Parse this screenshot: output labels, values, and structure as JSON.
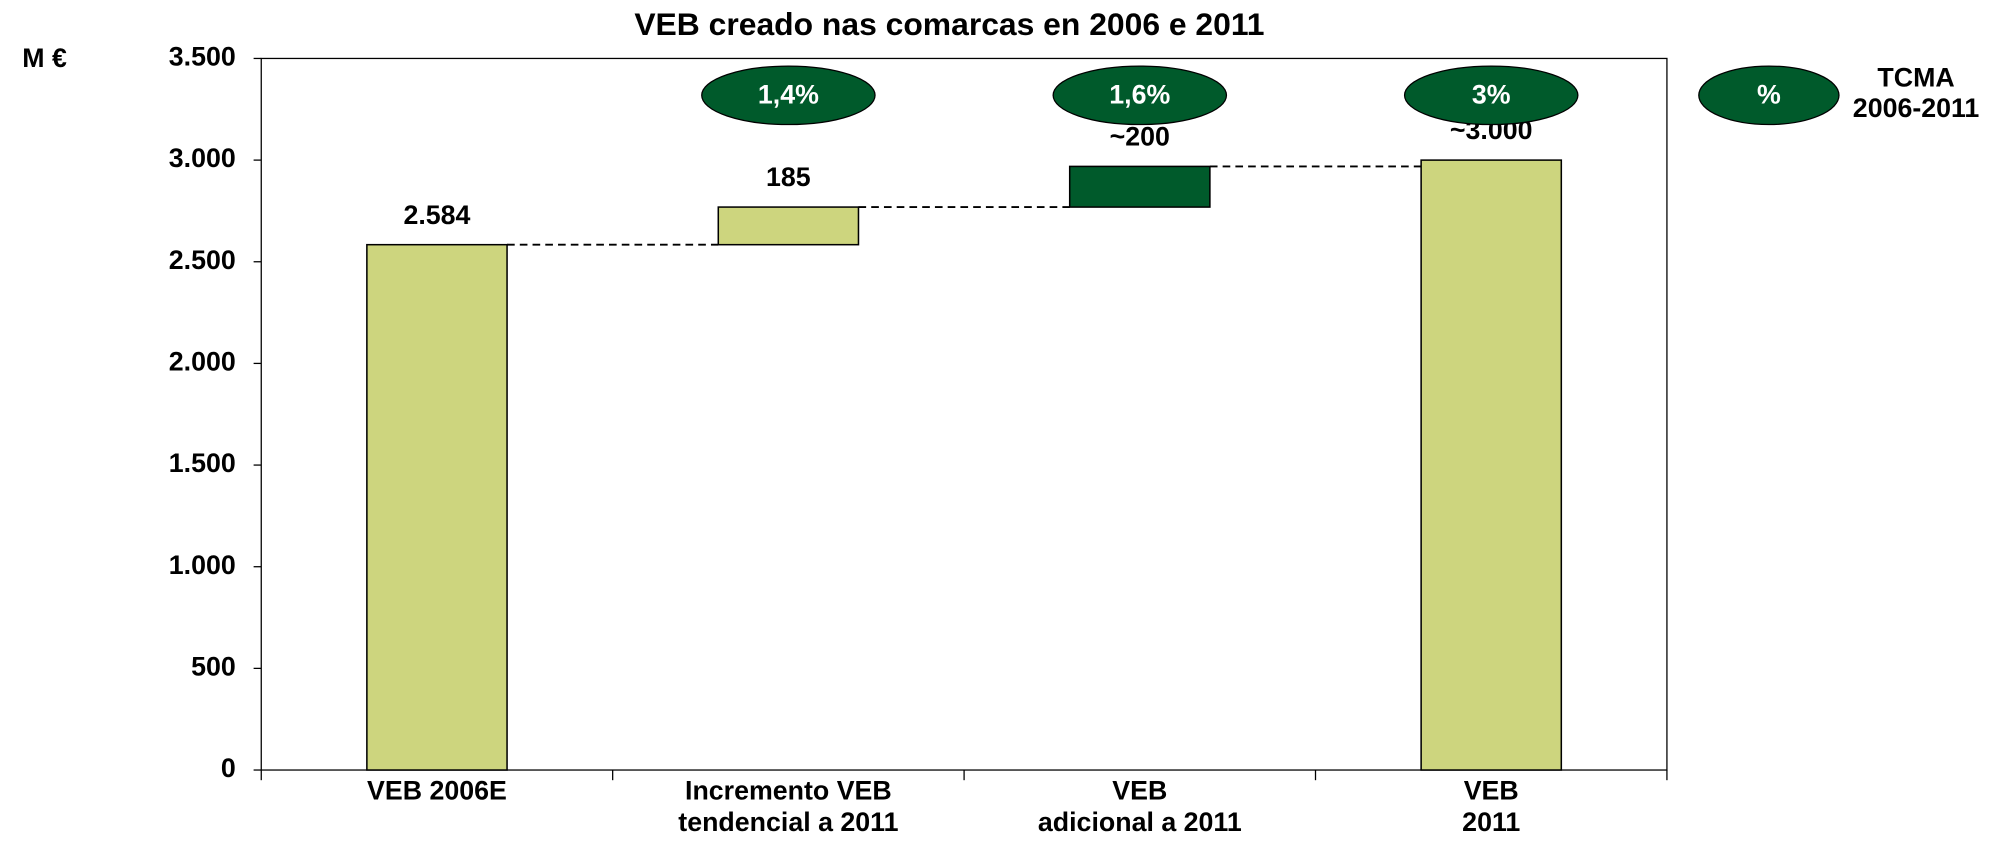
{
  "chart_data": {
    "type": "waterfall",
    "title": "VEB creado nas comarcas en 2006 e 2011",
    "unit_label": "M €",
    "categories": [
      "VEB 2006E",
      "Incremento VEB\ntendencial a 2011",
      "VEB\nadicional a 2011",
      "VEB\n2011"
    ],
    "values": [
      2584,
      185,
      200,
      3000
    ],
    "value_labels": [
      "2.584",
      "185",
      "~200",
      "~3.000"
    ],
    "measures": [
      "absolute",
      "relative",
      "relative",
      "total"
    ],
    "colors": [
      "#cdd57e",
      "#cdd57e",
      "#005a2b",
      "#cdd57e"
    ],
    "ylim": [
      0,
      3500
    ],
    "yticks": [
      0,
      500,
      {
        "value": 1000,
        "label": "1.000"
      },
      {
        "value": 1500,
        "label": "1.500"
      },
      {
        "value": 2000,
        "label": "2.000"
      },
      {
        "value": 2500,
        "label": "2.500"
      },
      {
        "value": 3000,
        "label": "3.000"
      },
      {
        "value": 3500,
        "label": "3.500"
      }
    ],
    "growth_labels": [
      null,
      "1,4%",
      "1,6%",
      "3%"
    ],
    "growth_color": "#005a2b",
    "growth_legend": {
      "symbol": "%",
      "label": "TCMA\n2006-2011"
    }
  }
}
